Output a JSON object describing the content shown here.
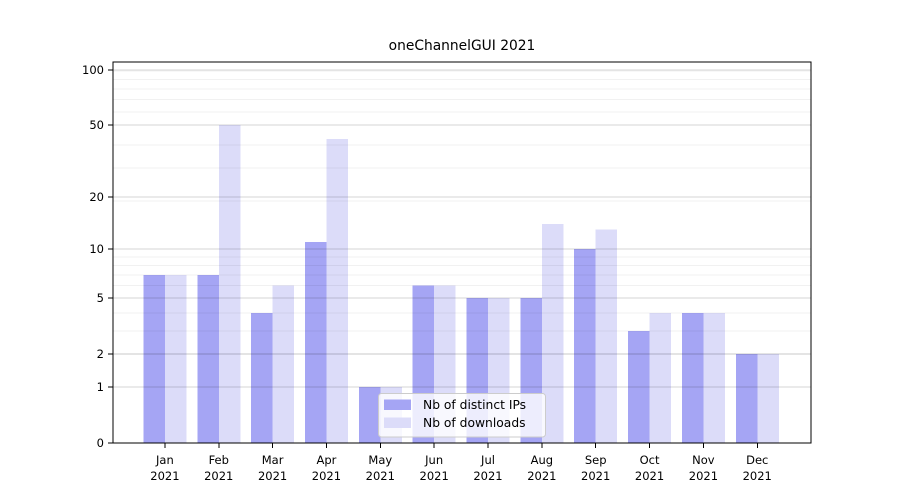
{
  "chart_data": {
    "type": "bar",
    "title": "oneChannelGUI 2021",
    "categories": [
      "Jan",
      "Feb",
      "Mar",
      "Apr",
      "May",
      "Jun",
      "Jul",
      "Aug",
      "Sep",
      "Oct",
      "Nov",
      "Dec"
    ],
    "year_label": "2021",
    "series": [
      {
        "name": "Nb of distinct IPs",
        "color": "#a5a5f4",
        "values": [
          7,
          7,
          4,
          11,
          1,
          6,
          5,
          5,
          10,
          3,
          4,
          2
        ]
      },
      {
        "name": "Nb of downloads",
        "color": "#dcdcf9",
        "values": [
          7,
          50,
          6,
          42,
          1,
          6,
          5,
          14,
          13,
          4,
          4,
          2
        ]
      }
    ],
    "yticks": [
      0,
      1,
      2,
      5,
      10,
      20,
      50,
      100
    ],
    "y_scale": "log10(1+x)",
    "ylim": [
      0,
      110
    ],
    "xlabel": "",
    "ylabel": "",
    "grid": true,
    "legend_position": "lower-center",
    "colors": {
      "spine": "#000000",
      "grid_minor": "rgba(0,0,0,0.055)",
      "grid_major": "rgba(0,0,0,0.16)",
      "legend_background": "rgba(255,255,255,0.8)",
      "legend_border": "#cccccc"
    }
  }
}
